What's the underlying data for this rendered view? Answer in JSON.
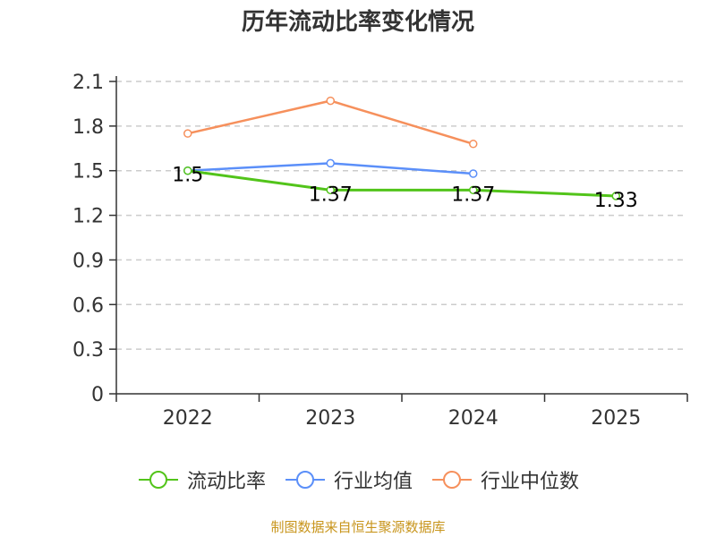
{
  "chart_data": {
    "type": "line",
    "title": "历年流动比率变化情况",
    "categories": [
      "2022",
      "2023",
      "2024",
      "2025"
    ],
    "ylim": [
      0,
      2.1
    ],
    "yticks": [
      "0",
      "0.3",
      "0.6",
      "0.9",
      "1.2",
      "1.5",
      "1.8",
      "2.1"
    ],
    "grid": true,
    "legend_position": "bottom",
    "series": [
      {
        "name": "流动比率",
        "values": [
          1.5,
          1.37,
          1.37,
          1.33
        ],
        "labels": [
          "1.5",
          "1.37",
          "1.37",
          "1.33"
        ],
        "color": "#52c41a"
      },
      {
        "name": "行业均值",
        "values": [
          1.5,
          1.55,
          1.48,
          null
        ],
        "color": "#5b8ff9"
      },
      {
        "name": "行业中位数",
        "values": [
          1.75,
          1.97,
          1.68,
          null
        ],
        "color": "#f6905c"
      }
    ]
  },
  "source": "制图数据来自恒生聚源数据库"
}
